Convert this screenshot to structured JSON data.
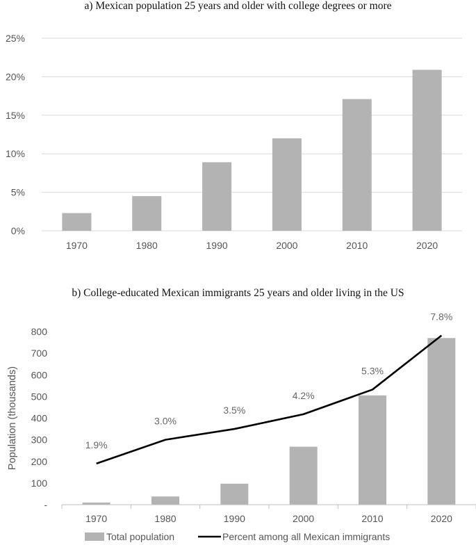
{
  "chart_data": [
    {
      "type": "bar",
      "title": "a) Mexican population 25 years and older with college degrees or more",
      "categories": [
        "1970",
        "1980",
        "1990",
        "2000",
        "2010",
        "2020"
      ],
      "values": [
        2.3,
        4.5,
        8.9,
        12.0,
        17.1,
        20.9
      ],
      "ylim": [
        0,
        25
      ],
      "yticks": [
        0,
        5,
        10,
        15,
        20,
        25
      ],
      "ytick_labels": [
        "0%",
        "5%",
        "10%",
        "15%",
        "20%",
        "25%"
      ],
      "grid": true,
      "bar_color": "#b3b3b3",
      "grid_color": "#d9d9d9"
    },
    {
      "type": "bar+line",
      "title": "b) College-educated Mexican immigrants 25 years and older living in the US",
      "categories": [
        "1970",
        "1980",
        "1990",
        "2000",
        "2010",
        "2020"
      ],
      "ylabel": "Population (thousands)",
      "ylim": [
        0,
        800
      ],
      "yticks": [
        0,
        100,
        200,
        300,
        400,
        500,
        600,
        700,
        800
      ],
      "ytick_labels": [
        "-",
        "100",
        "200",
        "300",
        "400",
        "500",
        "600",
        "700",
        "800"
      ],
      "series": [
        {
          "name": "Total population",
          "kind": "bar",
          "values": [
            10,
            38,
            97,
            268,
            505,
            770
          ],
          "color": "#b3b3b3"
        },
        {
          "name": "Percent among all Mexican immigrants",
          "kind": "line",
          "values": [
            190,
            300,
            350,
            418,
            532,
            782
          ],
          "labels": [
            "1.9%",
            "3.0%",
            "3.5%",
            "4.2%",
            "5.3%",
            "7.8%"
          ],
          "color": "#000000"
        }
      ],
      "legend": "bottom"
    }
  ]
}
